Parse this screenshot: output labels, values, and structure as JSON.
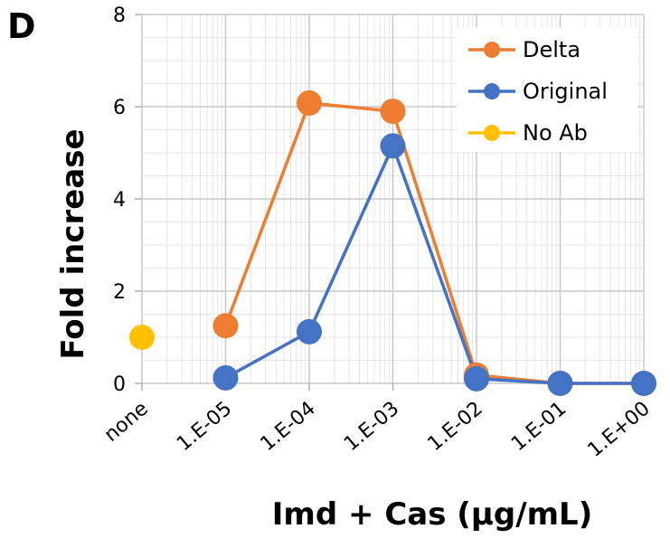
{
  "panel_label": "D",
  "chart_data": {
    "type": "line",
    "title": "",
    "xlabel": "Imd + Cas (μg/mL)",
    "ylabel": "Fold increase",
    "categories": [
      "none",
      "1.E-05",
      "1.E-04",
      "1.E-03",
      "1.E-02",
      "1.E-01",
      "1.E+00"
    ],
    "ylim": [
      0,
      8
    ],
    "yticks": [
      "0",
      "2",
      "4",
      "6",
      "8"
    ],
    "grid": true,
    "legend_position": "top-right",
    "series": [
      {
        "name": "Delta",
        "color": "#ed7d31",
        "values": [
          null,
          1.25,
          6.08,
          5.9,
          0.18,
          0.0,
          0.0
        ]
      },
      {
        "name": "Original",
        "color": "#4472c4",
        "values": [
          null,
          0.12,
          1.12,
          5.15,
          0.1,
          0.0,
          0.0
        ]
      },
      {
        "name": "No Ab",
        "color": "#ffc000",
        "values": [
          1.0,
          null,
          null,
          null,
          null,
          null,
          null
        ]
      }
    ]
  }
}
